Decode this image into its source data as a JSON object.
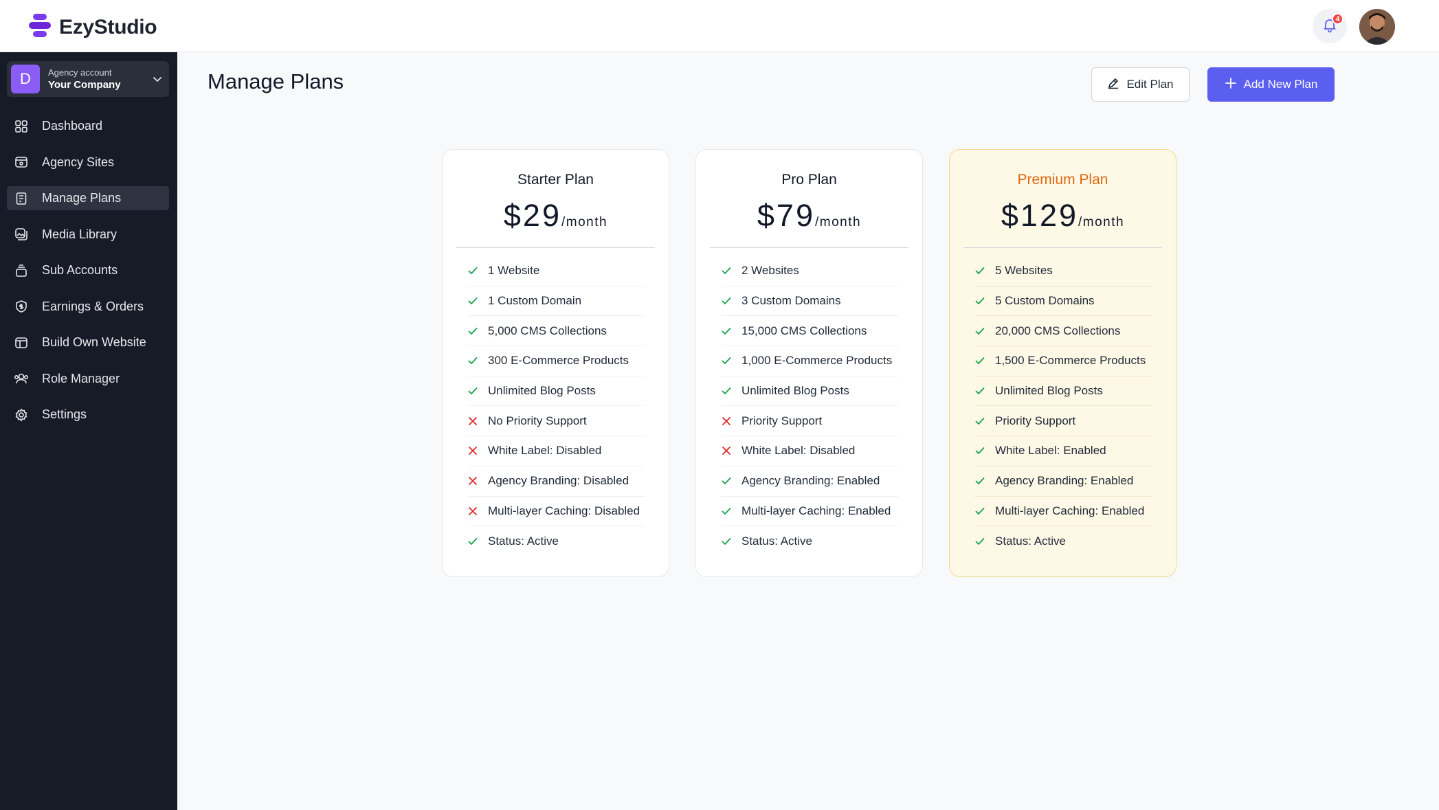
{
  "brand": {
    "name": "EzyStudio"
  },
  "header": {
    "notification_count": "4"
  },
  "account": {
    "subtitle": "Agency account",
    "name": "Your Company",
    "initial": "D"
  },
  "sidebar": {
    "items": [
      {
        "label": "Dashboard",
        "icon": "grid-icon"
      },
      {
        "label": "Agency Sites",
        "icon": "browser-icon"
      },
      {
        "label": "Manage Plans",
        "icon": "document-icon",
        "active": true
      },
      {
        "label": "Media Library",
        "icon": "media-icon"
      },
      {
        "label": "Sub Accounts",
        "icon": "stack-icon"
      },
      {
        "label": "Earnings & Orders",
        "icon": "shield-dollar-icon"
      },
      {
        "label": "Build Own Website",
        "icon": "layout-icon"
      },
      {
        "label": "Role Manager",
        "icon": "users-icon"
      },
      {
        "label": "Settings",
        "icon": "gear-icon"
      }
    ]
  },
  "main": {
    "title": "Manage Plans",
    "edit_label": "Edit Plan",
    "add_label": "Add New Plan"
  },
  "colors": {
    "accent": "#5b5ff0",
    "sidebar_bg": "#161b27",
    "check": "#16a34a",
    "cross": "#dc2626",
    "premium_title": "#e0660f",
    "premium_bg": "#fef8e7"
  },
  "plans": [
    {
      "name": "Starter Plan",
      "price": "$29",
      "period": "/month",
      "features": [
        {
          "text": "1 Website",
          "ok": true
        },
        {
          "text": "1 Custom Domain",
          "ok": true
        },
        {
          "text": "5,000 CMS Collections",
          "ok": true
        },
        {
          "text": "300 E-Commerce Products",
          "ok": true
        },
        {
          "text": "Unlimited Blog Posts",
          "ok": true
        },
        {
          "text": "No Priority Support",
          "ok": false
        },
        {
          "text": "White Label: Disabled",
          "ok": false
        },
        {
          "text": "Agency Branding: Disabled",
          "ok": false
        },
        {
          "text": "Multi-layer Caching: Disabled",
          "ok": false
        },
        {
          "text": "Status: Active",
          "ok": true
        }
      ]
    },
    {
      "name": "Pro Plan",
      "price": "$79",
      "period": "/month",
      "features": [
        {
          "text": "2 Websites",
          "ok": true
        },
        {
          "text": "3 Custom Domains",
          "ok": true
        },
        {
          "text": "15,000 CMS Collections",
          "ok": true
        },
        {
          "text": "1,000 E-Commerce Products",
          "ok": true
        },
        {
          "text": "Unlimited Blog Posts",
          "ok": true
        },
        {
          "text": "Priority Support",
          "ok": false
        },
        {
          "text": "White Label: Disabled",
          "ok": false
        },
        {
          "text": "Agency Branding: Enabled",
          "ok": true
        },
        {
          "text": "Multi-layer Caching: Enabled",
          "ok": true
        },
        {
          "text": "Status: Active",
          "ok": true
        }
      ]
    },
    {
      "name": "Premium Plan",
      "price": "$129",
      "period": "/month",
      "features": [
        {
          "text": "5 Websites",
          "ok": true
        },
        {
          "text": "5 Custom Domains",
          "ok": true
        },
        {
          "text": "20,000 CMS Collections",
          "ok": true
        },
        {
          "text": "1,500 E-Commerce Products",
          "ok": true
        },
        {
          "text": "Unlimited Blog Posts",
          "ok": true
        },
        {
          "text": "Priority Support",
          "ok": true
        },
        {
          "text": "White Label: Enabled",
          "ok": true
        },
        {
          "text": "Agency Branding: Enabled",
          "ok": true
        },
        {
          "text": "Multi-layer Caching: Enabled",
          "ok": true
        },
        {
          "text": "Status: Active",
          "ok": true
        }
      ]
    }
  ]
}
